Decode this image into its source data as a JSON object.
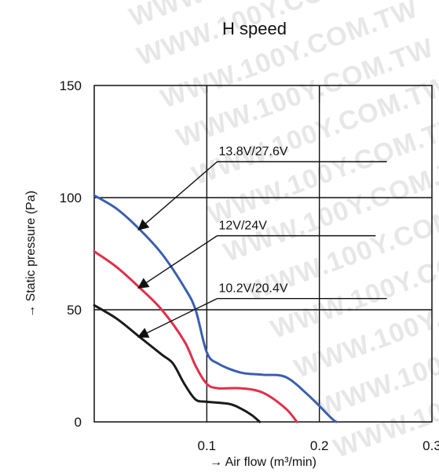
{
  "chart_data": {
    "type": "line",
    "title": "H speed",
    "xlabel": "→ Air flow (m³/min)",
    "ylabel": "→ Static pressure (Pa)",
    "xlim": [
      0,
      0.3
    ],
    "ylim": [
      0,
      150
    ],
    "x_ticks": [
      "0.1",
      "0.2",
      "0.3"
    ],
    "y_ticks": [
      "0",
      "50",
      "100",
      "150"
    ],
    "grid": true,
    "watermark": "WWW.100Y.COM.TW",
    "series": [
      {
        "name": "13.8V/27.6V",
        "color": "#3a5fb0",
        "points": [
          [
            0.0,
            101
          ],
          [
            0.02,
            95
          ],
          [
            0.04,
            86
          ],
          [
            0.06,
            75
          ],
          [
            0.08,
            60
          ],
          [
            0.09,
            50
          ],
          [
            0.1,
            31
          ],
          [
            0.11,
            26
          ],
          [
            0.13,
            22
          ],
          [
            0.15,
            21
          ],
          [
            0.17,
            20
          ],
          [
            0.19,
            12
          ],
          [
            0.21,
            2
          ],
          [
            0.215,
            0
          ]
        ]
      },
      {
        "name": "12V/24V",
        "color": "#e0304a",
        "points": [
          [
            0.0,
            76
          ],
          [
            0.02,
            69
          ],
          [
            0.04,
            60
          ],
          [
            0.06,
            50
          ],
          [
            0.08,
            36
          ],
          [
            0.09,
            25
          ],
          [
            0.1,
            17
          ],
          [
            0.11,
            15
          ],
          [
            0.13,
            15
          ],
          [
            0.15,
            13
          ],
          [
            0.17,
            6
          ],
          [
            0.18,
            0
          ]
        ]
      },
      {
        "name": "10.2V/20.4V",
        "color": "#1a1a1a",
        "points": [
          [
            0.0,
            52
          ],
          [
            0.02,
            46
          ],
          [
            0.04,
            38
          ],
          [
            0.06,
            30
          ],
          [
            0.07,
            26
          ],
          [
            0.08,
            17
          ],
          [
            0.09,
            10
          ],
          [
            0.1,
            9
          ],
          [
            0.12,
            8
          ],
          [
            0.13,
            6
          ],
          [
            0.14,
            3
          ],
          [
            0.147,
            0
          ]
        ]
      }
    ],
    "annotations": [
      {
        "text": "13.8V/27.6V",
        "series": "13.8V/27.6V",
        "label_x": 0.105,
        "label_y": 116,
        "line_end_x": 0.26,
        "arrow_to_x": 0.04,
        "arrow_to_y": 86
      },
      {
        "text": "12V/24V",
        "series": "12V/24V",
        "label_x": 0.105,
        "label_y": 83,
        "line_end_x": 0.25,
        "arrow_to_x": 0.04,
        "arrow_to_y": 60
      },
      {
        "text": "10.2V/20.4V",
        "series": "10.2V/20.4V",
        "label_x": 0.105,
        "label_y": 55,
        "line_end_x": 0.26,
        "arrow_to_x": 0.04,
        "arrow_to_y": 38
      }
    ]
  }
}
